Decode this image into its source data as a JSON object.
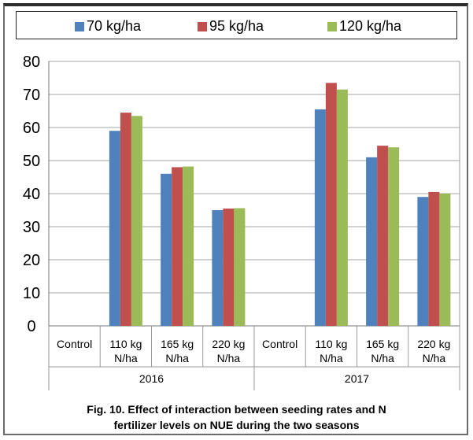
{
  "chart_data": {
    "type": "bar",
    "groups": [
      {
        "label": "2016",
        "categories": [
          [
            "Control"
          ],
          [
            "110 kg",
            "N/ha"
          ],
          [
            "165 kg",
            "N/ha"
          ],
          [
            "220 kg",
            "N/ha"
          ]
        ]
      },
      {
        "label": "2017",
        "categories": [
          [
            "Control"
          ],
          [
            "110 kg",
            "N/ha"
          ],
          [
            "165 kg",
            "N/ha"
          ],
          [
            "220 kg",
            "N/ha"
          ]
        ]
      }
    ],
    "series": [
      {
        "name": "70 kg/ha",
        "color": "#4f81bd",
        "values": [
          0,
          59,
          46,
          35,
          0,
          65.5,
          51,
          39
        ]
      },
      {
        "name": "95 kg/ha",
        "color": "#c0504d",
        "values": [
          0,
          64.5,
          48,
          35.5,
          0,
          73.5,
          54.5,
          40.5
        ]
      },
      {
        "name": "120 kg/ha",
        "color": "#9bbb59",
        "values": [
          0,
          63.5,
          48.2,
          35.6,
          0,
          71.5,
          54,
          40
        ]
      }
    ],
    "ylim": [
      0,
      80
    ],
    "yticks": [
      0,
      10,
      20,
      30,
      40,
      50,
      60,
      70,
      80
    ],
    "grid": true,
    "legend_position": "top"
  },
  "caption": {
    "line1": "Fig. 10. Effect of interaction between seeding rates and N",
    "line2": "fertilizer levels on NUE during the two seasons"
  }
}
